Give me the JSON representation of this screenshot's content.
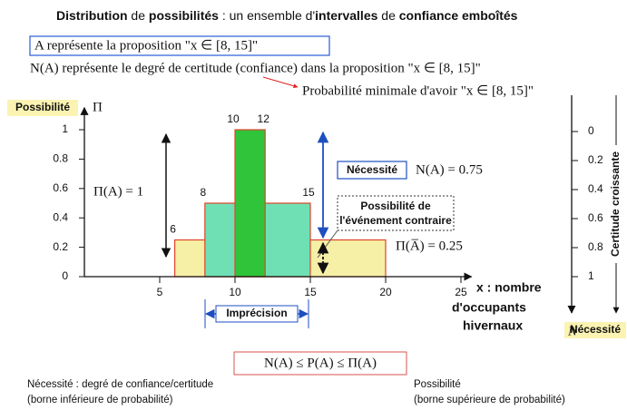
{
  "title": {
    "segments": [
      {
        "text": "Distribution",
        "bold": true
      },
      {
        "text": " de ",
        "bold": false
      },
      {
        "text": "possibilités",
        "bold": true
      },
      {
        "text": " : un ensemble d'",
        "bold": false
      },
      {
        "text": "intervalles",
        "bold": true
      },
      {
        "text": " de ",
        "bold": false
      },
      {
        "text": "confiance emboîtés",
        "bold": true
      }
    ]
  },
  "proposition": "A représente la proposition \"x ∈ [8, 15]\"",
  "definition": "N(A) représente le degré de certitude (confiance) dans la proposition \"x ∈ [8, 15]\"",
  "probability_note": "Probabilité minimale d'avoir \"x ∈ [8, 15]\"",
  "axes": {
    "y": {
      "label": "Possibilité",
      "symbol": "Π",
      "range": [
        0,
        1.15
      ],
      "ticks": [
        0,
        0.2,
        0.4,
        0.6,
        0.8,
        1
      ]
    },
    "x": {
      "label": [
        "x : nombre",
        "d'occupants",
        "hivernaux"
      ],
      "range": [
        0,
        26
      ],
      "ticks": [
        5,
        10,
        15,
        20,
        25
      ]
    },
    "y2": {
      "label": "Nécessité",
      "symbol": "N",
      "side_label": "Certitude croissante",
      "range": [
        1.25,
        -0.25
      ],
      "ticks": [
        0,
        0.2,
        0.4,
        0.6,
        0.8,
        1
      ]
    }
  },
  "intervals": [
    {
      "low": 6,
      "high": 20,
      "level": 0.25,
      "color": "#f6efa6",
      "labeled_ends": [
        "low"
      ]
    },
    {
      "low": 8,
      "high": 15,
      "level": 0.5,
      "color": "#6fe0b4",
      "labeled_ends": [
        "low",
        "high"
      ]
    },
    {
      "low": 10,
      "high": 12,
      "level": 1,
      "color": "#2fc43a",
      "labeled_ends": [
        "low",
        "high"
      ]
    }
  ],
  "annotations": {
    "possibility": "Π(A) = 1",
    "necessity_box": "Nécessité",
    "necessity": "N(A) = 0.75",
    "contrary_box": [
      "Possibilité de",
      "l'événement contraire"
    ],
    "contrary": "Π(A̅) = 0.25",
    "imprecision": "Imprécision"
  },
  "formula": "N(A) ≤ P(A) ≤ Π(A)",
  "notes": {
    "left": [
      "Nécessité : degré de confiance/certitude",
      "(borne inférieure de probabilité)"
    ],
    "right": [
      "Possibilité",
      "(borne supérieure de probabilité)"
    ]
  }
}
